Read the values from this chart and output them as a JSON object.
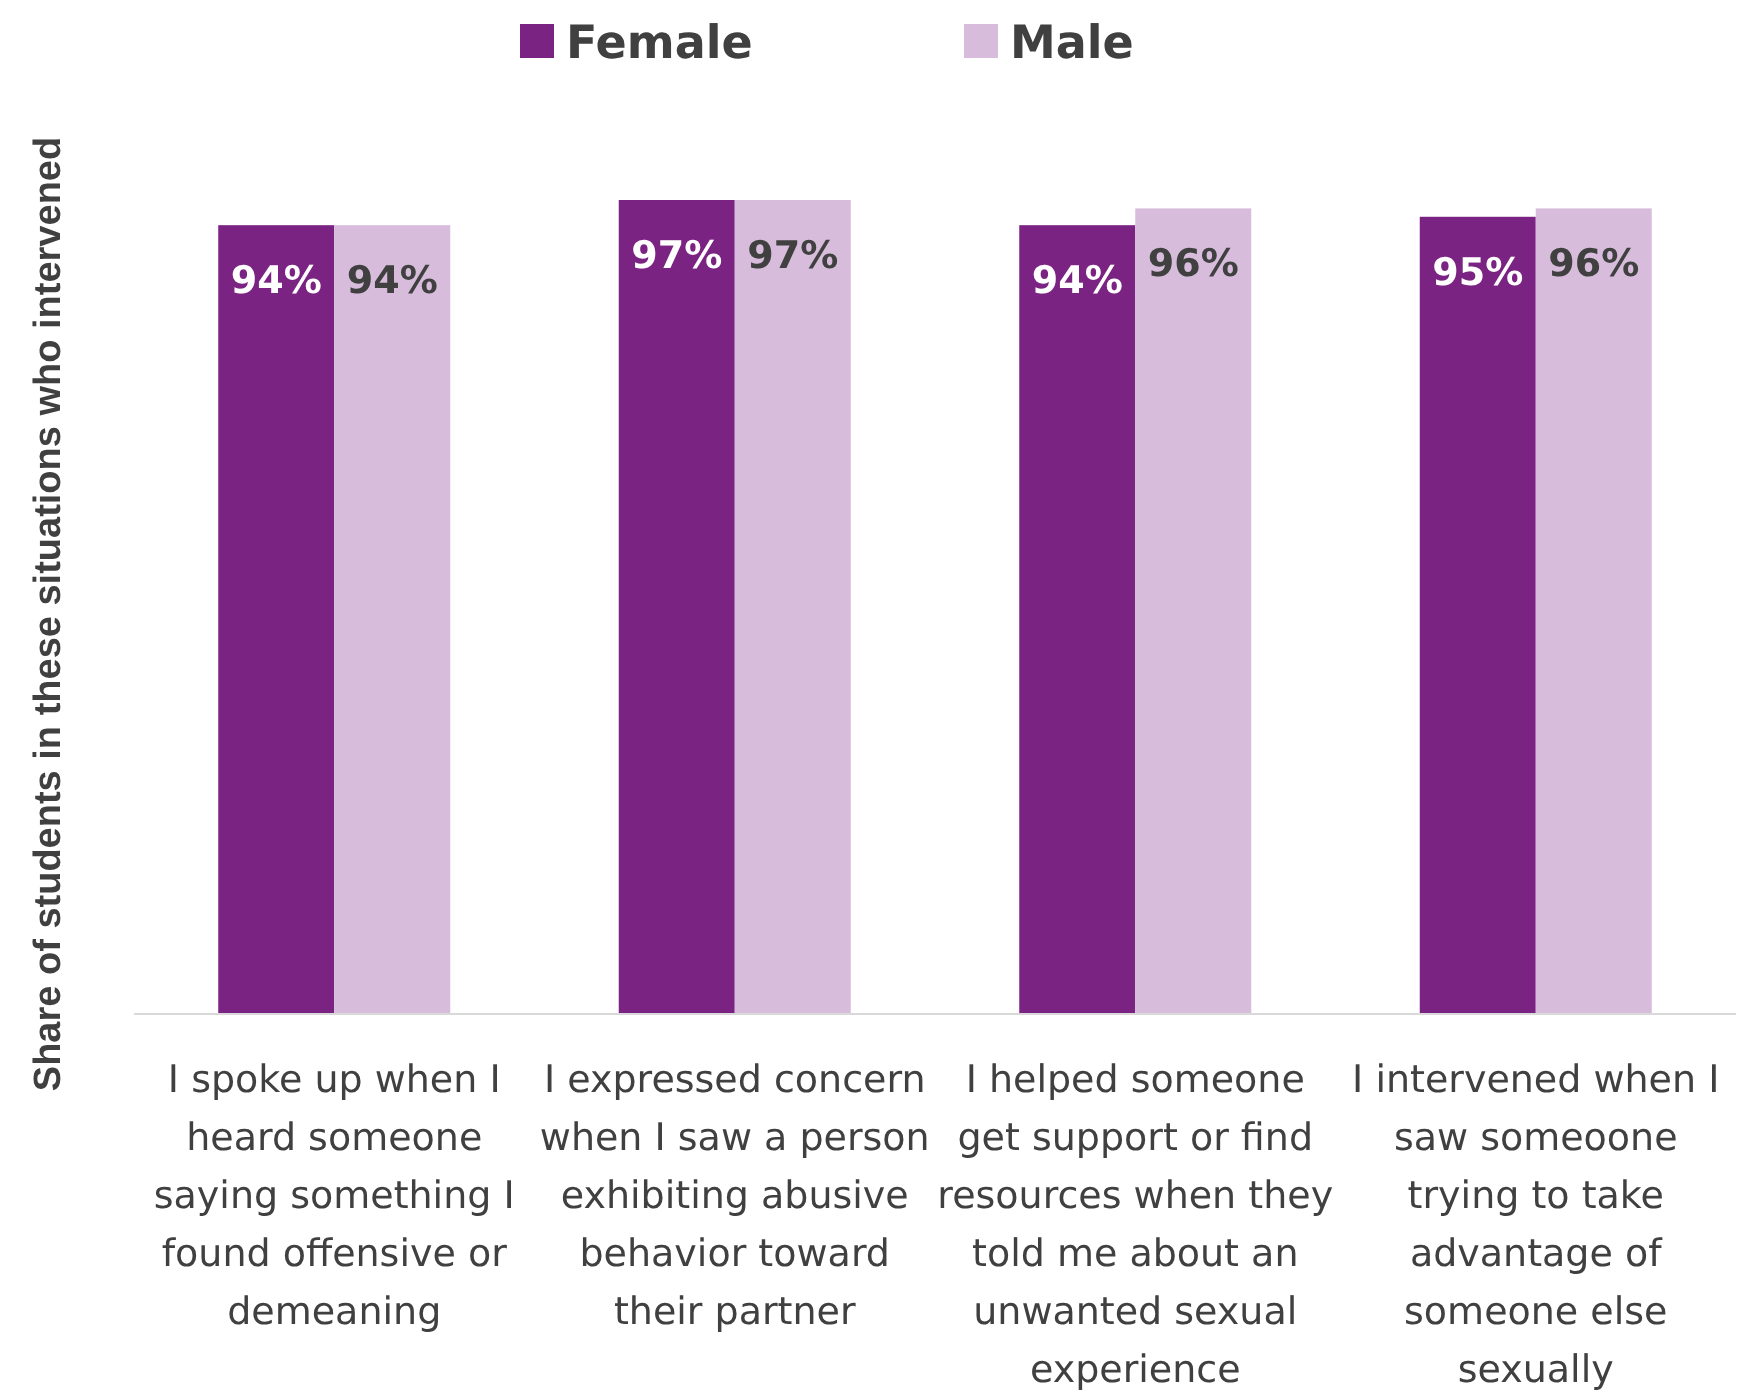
{
  "chart_data": {
    "type": "bar",
    "ylabel": "Share of students in these situations who intervened",
    "categories": [
      "I spoke up when I heard someone saying something I found offensive or demeaning",
      "I expressed concern when I saw a person exhibiting abusive behavior toward their partner",
      "I helped someone get support or find resources when they told me about an unwanted sexual experience",
      "I intervened when I saw someoone trying to take advantage of someone else sexually"
    ],
    "series": [
      {
        "name": "Female",
        "color": "#7b2382",
        "values": [
          94,
          97,
          94,
          95
        ],
        "value_labels": [
          "94%",
          "97%",
          "94%",
          "95%"
        ]
      },
      {
        "name": "Male",
        "color": "#d7bcdc",
        "values": [
          94,
          97,
          96,
          96
        ],
        "value_labels": [
          "94%",
          "97%",
          "96%",
          "96%"
        ]
      }
    ],
    "tick_labels": "x",
    "legend": "top"
  }
}
